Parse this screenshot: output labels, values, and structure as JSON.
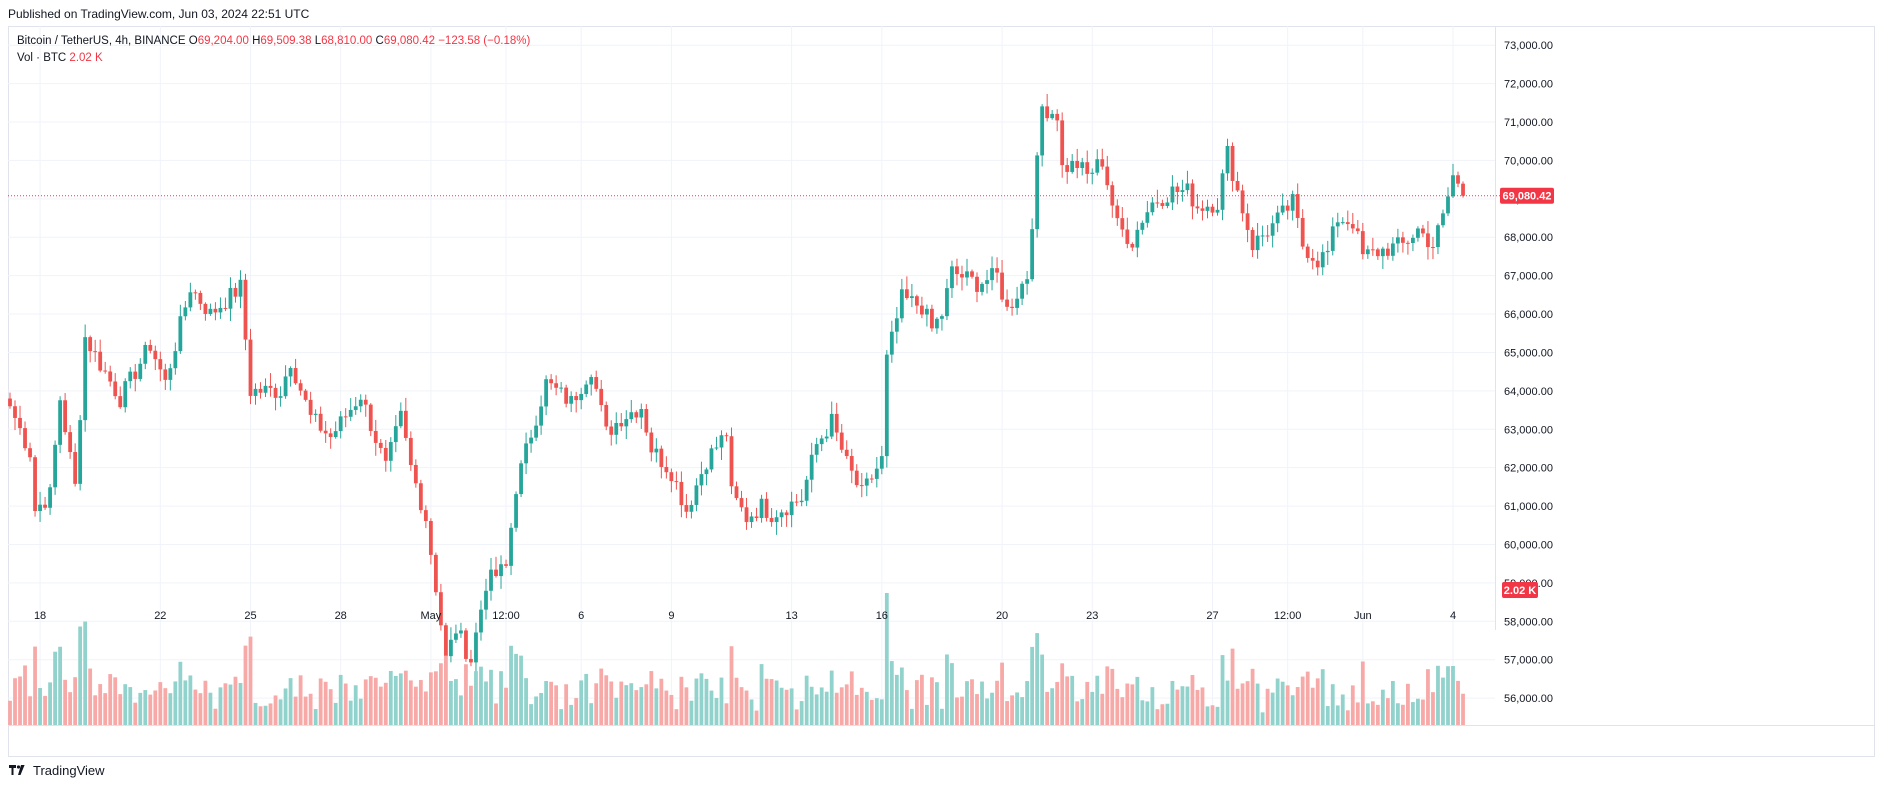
{
  "header": {
    "published": "Published on TradingView.com, Jun 03, 2024 22:51 UTC"
  },
  "legend": {
    "symbol": "Bitcoin / TetherUS, 4h, BINANCE",
    "o_label": "O",
    "o_value": "69,204.00",
    "h_label": "H",
    "h_value": "69,509.38",
    "l_label": "L",
    "l_value": "68,810.00",
    "c_label": "C",
    "c_value": "69,080.42",
    "change": "−123.58 (−0.18%)",
    "vol_label": "Vol · BTC",
    "vol_value": "2.02 K"
  },
  "footer": {
    "brand": "TradingView"
  },
  "colors": {
    "up": "#26a69a",
    "down": "#ef5350",
    "up_volume": "#92d2cc",
    "down_volume": "#f7a9a7",
    "grid": "#f0f3fa",
    "price_line": "#f23645",
    "badge": "#f23645"
  },
  "chart_data": {
    "type": "candlestick",
    "interval": "4h",
    "ylim": [
      55300,
      73500
    ],
    "price_ticks": [
      "73,000.00",
      "72,000.00",
      "71,000.00",
      "70,000.00",
      "69,000.00",
      "68,000.00",
      "67,000.00",
      "66,000.00",
      "65,000.00",
      "64,000.00",
      "63,000.00",
      "62,000.00",
      "61,000.00",
      "60,000.00",
      "59,000.00",
      "58,000.00",
      "57,000.00",
      "56,000.00"
    ],
    "x_ticks": [
      {
        "label": "18",
        "i": 6
      },
      {
        "label": "22",
        "i": 30
      },
      {
        "label": "25",
        "i": 48
      },
      {
        "label": "28",
        "i": 66
      },
      {
        "label": "May",
        "i": 84
      },
      {
        "label": "12:00",
        "i": 99
      },
      {
        "label": "6",
        "i": 114
      },
      {
        "label": "9",
        "i": 132
      },
      {
        "label": "13",
        "i": 156
      },
      {
        "label": "16",
        "i": 174
      },
      {
        "label": "20",
        "i": 198
      },
      {
        "label": "23",
        "i": 216
      },
      {
        "label": "27",
        "i": 240
      },
      {
        "label": "12:00",
        "i": 255
      },
      {
        "label": "Jun",
        "i": 270
      },
      {
        "label": "4",
        "i": 288
      }
    ],
    "last_price": 69080.42,
    "last_price_label": "69,080.42",
    "last_volume_label": "2.02 K",
    "anchors": [
      [
        0,
        63600
      ],
      [
        4,
        62400
      ],
      [
        5,
        60900
      ],
      [
        8,
        61300
      ],
      [
        10,
        63800
      ],
      [
        13,
        61500
      ],
      [
        15,
        65400
      ],
      [
        18,
        64700
      ],
      [
        22,
        63800
      ],
      [
        28,
        65200
      ],
      [
        31,
        64200
      ],
      [
        36,
        66700
      ],
      [
        40,
        66000
      ],
      [
        46,
        66700
      ],
      [
        48,
        64000
      ],
      [
        54,
        64000
      ],
      [
        56,
        64800
      ],
      [
        60,
        63300
      ],
      [
        64,
        62800
      ],
      [
        70,
        63900
      ],
      [
        75,
        62000
      ],
      [
        78,
        63300
      ],
      [
        80,
        62000
      ],
      [
        83,
        60700
      ],
      [
        85,
        58900
      ],
      [
        87,
        57000
      ],
      [
        89,
        57800
      ],
      [
        92,
        57000
      ],
      [
        95,
        59000
      ],
      [
        99,
        59400
      ],
      [
        101,
        61500
      ],
      [
        104,
        62900
      ],
      [
        107,
        64200
      ],
      [
        112,
        63700
      ],
      [
        116,
        64600
      ],
      [
        119,
        62900
      ],
      [
        122,
        63300
      ],
      [
        126,
        63600
      ],
      [
        128,
        62500
      ],
      [
        132,
        61900
      ],
      [
        135,
        60900
      ],
      [
        139,
        62200
      ],
      [
        143,
        62900
      ],
      [
        144,
        61300
      ],
      [
        147,
        60700
      ],
      [
        150,
        61000
      ],
      [
        152,
        60800
      ],
      [
        158,
        61200
      ],
      [
        161,
        62600
      ],
      [
        164,
        63200
      ],
      [
        167,
        62100
      ],
      [
        170,
        61300
      ],
      [
        174,
        62200
      ],
      [
        175,
        64800
      ],
      [
        178,
        66400
      ],
      [
        182,
        66200
      ],
      [
        184,
        65600
      ],
      [
        186,
        66000
      ],
      [
        188,
        67100
      ],
      [
        193,
        66800
      ],
      [
        197,
        67000
      ],
      [
        199,
        66100
      ],
      [
        203,
        67000
      ],
      [
        205,
        69900
      ],
      [
        206,
        71400
      ],
      [
        209,
        71200
      ],
      [
        210,
        69800
      ],
      [
        213,
        69900
      ],
      [
        215,
        69600
      ],
      [
        218,
        70000
      ],
      [
        221,
        68300
      ],
      [
        224,
        67900
      ],
      [
        226,
        68500
      ],
      [
        228,
        68900
      ],
      [
        232,
        69200
      ],
      [
        235,
        69200
      ],
      [
        237,
        68800
      ],
      [
        241,
        68900
      ],
      [
        243,
        70200
      ],
      [
        245,
        69200
      ],
      [
        248,
        67800
      ],
      [
        252,
        68300
      ],
      [
        256,
        68900
      ],
      [
        258,
        67800
      ],
      [
        261,
        67400
      ],
      [
        263,
        67600
      ],
      [
        265,
        68500
      ],
      [
        268,
        68400
      ],
      [
        270,
        67500
      ],
      [
        275,
        67700
      ],
      [
        278,
        67800
      ],
      [
        281,
        68200
      ],
      [
        284,
        67800
      ],
      [
        286,
        68500
      ],
      [
        288,
        69600
      ],
      [
        290,
        69080
      ]
    ],
    "n_candles": 291
  }
}
